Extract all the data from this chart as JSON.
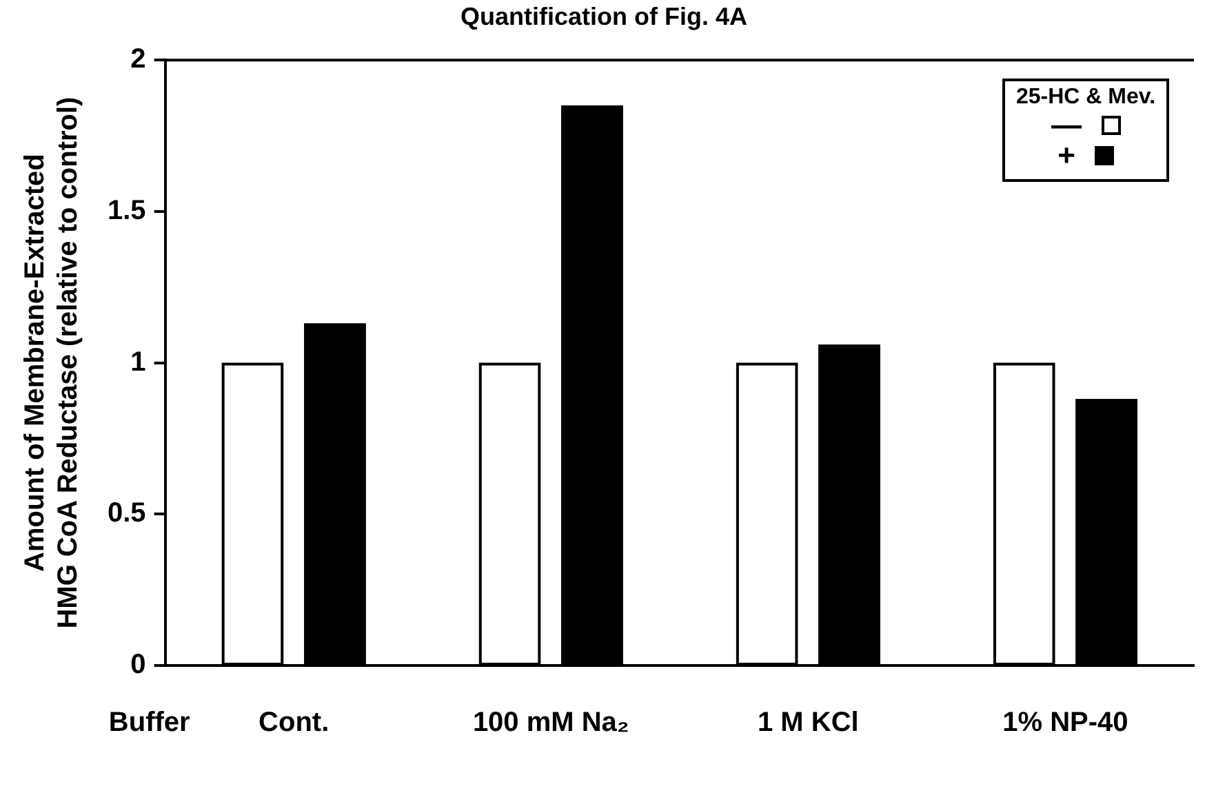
{
  "chart_data": {
    "type": "bar",
    "title": "Quantification of Fig. 4A",
    "xlabel": "Buffer",
    "ylabel": "Amount of Membrane-Extracted\nHMG CoA Reductase (relative to control)",
    "legend_title": "25-HC & Mev.",
    "categories": [
      "Cont.",
      "100 mM Na₂",
      "1 M KCl",
      "1% NP-40"
    ],
    "series": [
      {
        "name": "—",
        "color": "#ffffff",
        "values": [
          1,
          1,
          1,
          1
        ]
      },
      {
        "name": "+",
        "color": "#000000",
        "values": [
          1.13,
          1.85,
          1.06,
          0.88
        ]
      }
    ],
    "ylim": [
      0,
      2
    ],
    "yticks": [
      0,
      0.5,
      1,
      1.5,
      2
    ],
    "grid": false,
    "legend": "top right"
  }
}
